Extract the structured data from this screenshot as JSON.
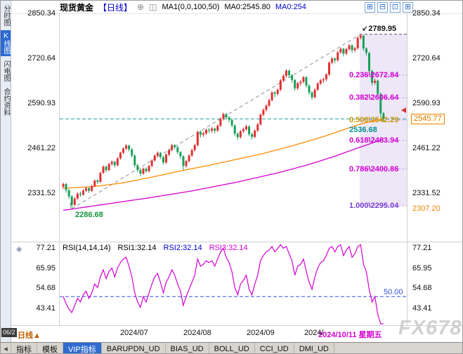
{
  "header": {
    "symbol": "现货黄金",
    "period": "【日线】",
    "collapse_icon": "⊕",
    "ma_icon": "◫",
    "ma_settings": "MA1(0,0,100,50)",
    "ma_value_1": "MA0:2545.80",
    "ma_value_2": "MA0:254",
    "window_icons": [
      "⊞",
      "⊟",
      "⊡",
      "⊞"
    ]
  },
  "sidebar": {
    "items": [
      {
        "label": "分时图",
        "active": false
      },
      {
        "label": "K线图",
        "active": true
      },
      {
        "label": "闪电图",
        "active": false
      },
      {
        "label": "合约资料",
        "active": false
      }
    ]
  },
  "chart_data": [
    {
      "type": "candlestick",
      "title": "现货黄金 日线",
      "y_ticks": [
        "2850.34",
        "2720.64",
        "2590.93",
        "2461.22",
        "2331.52"
      ],
      "x_labels": [
        "2024/07",
        "2024/08",
        "2024/09",
        "2024/"
      ],
      "crosshair_date": "2024/10/11 星期五",
      "current_price": "2545.77",
      "lower_level": "2307.20",
      "high_annotation": "2789.95",
      "high_arrow": "↙",
      "low_annotation": "2286.68",
      "low_arrow": "↑",
      "recent_low_annotation": "2536.68",
      "up_color": "#e03131",
      "down_color": "#18a058",
      "current_line_color": "#1f9e9e",
      "fib_levels": [
        {
          "label": "0.236\\2672.84",
          "price": 2672.84,
          "color": "#d400d4"
        },
        {
          "label": "0.382\\2606.64",
          "price": 2606.64,
          "color": "#d400d4"
        },
        {
          "label": "0.500\\2542.29",
          "price": 2542.29,
          "color": "#c89600"
        },
        {
          "label": "0.618\\2483.94",
          "price": 2483.94,
          "color": "#d400d4"
        },
        {
          "label": "0.786\\2400.86",
          "price": 2400.86,
          "color": "#d400d4"
        },
        {
          "label": "1.000\\2295.04",
          "price": 2295.04,
          "color": "#7a3fd4"
        }
      ],
      "trendline": {
        "from_index": 3,
        "to_index": 104
      },
      "ma_orange_points": [
        [
          0,
          2346
        ],
        [
          10,
          2350
        ],
        [
          20,
          2360
        ],
        [
          30,
          2376
        ],
        [
          40,
          2394
        ],
        [
          50,
          2410
        ],
        [
          60,
          2428
        ],
        [
          70,
          2446
        ],
        [
          80,
          2468
        ],
        [
          90,
          2492
        ],
        [
          95,
          2506
        ],
        [
          100,
          2520
        ],
        [
          104,
          2531
        ],
        [
          108,
          2539
        ],
        [
          112,
          2546
        ]
      ],
      "ma_magenta_points": [
        [
          0,
          2282
        ],
        [
          15,
          2300
        ],
        [
          30,
          2318
        ],
        [
          45,
          2338
        ],
        [
          60,
          2362
        ],
        [
          75,
          2390
        ],
        [
          85,
          2412
        ],
        [
          95,
          2438
        ],
        [
          103,
          2462
        ],
        [
          108,
          2476
        ],
        [
          112,
          2488
        ]
      ],
      "candles": [
        [
          2350,
          2362,
          2344,
          2358
        ],
        [
          2358,
          2361,
          2333,
          2340
        ],
        [
          2340,
          2344,
          2315,
          2322
        ],
        [
          2322,
          2326,
          2286.68,
          2298
        ],
        [
          2298,
          2320,
          2294,
          2316
        ],
        [
          2316,
          2334,
          2312,
          2330
        ],
        [
          2330,
          2336,
          2321,
          2327
        ],
        [
          2327,
          2343,
          2324,
          2339
        ],
        [
          2339,
          2350,
          2334,
          2346
        ],
        [
          2346,
          2349,
          2332,
          2338
        ],
        [
          2338,
          2356,
          2335,
          2352
        ],
        [
          2352,
          2371,
          2349,
          2368
        ],
        [
          2368,
          2372,
          2358,
          2364
        ],
        [
          2364,
          2393,
          2361,
          2390
        ],
        [
          2390,
          2412,
          2387,
          2408
        ],
        [
          2408,
          2411,
          2392,
          2398
        ],
        [
          2398,
          2419,
          2395,
          2416
        ],
        [
          2416,
          2426,
          2410,
          2422
        ],
        [
          2422,
          2425,
          2406,
          2412
        ],
        [
          2412,
          2435,
          2409,
          2432
        ],
        [
          2432,
          2451,
          2428,
          2448
        ],
        [
          2448,
          2464,
          2444,
          2460
        ],
        [
          2460,
          2473,
          2455,
          2469
        ],
        [
          2469,
          2471,
          2452,
          2458
        ],
        [
          2458,
          2462,
          2435,
          2440
        ],
        [
          2440,
          2444,
          2406,
          2412
        ],
        [
          2412,
          2416,
          2392,
          2398
        ],
        [
          2398,
          2404,
          2381,
          2388
        ],
        [
          2388,
          2406,
          2384,
          2402
        ],
        [
          2402,
          2407,
          2390,
          2395
        ],
        [
          2395,
          2413,
          2391,
          2410
        ],
        [
          2410,
          2429,
          2406,
          2426
        ],
        [
          2426,
          2444,
          2422,
          2440
        ],
        [
          2440,
          2452,
          2434,
          2448
        ],
        [
          2448,
          2450,
          2430,
          2436
        ],
        [
          2436,
          2439,
          2414,
          2420
        ],
        [
          2420,
          2446,
          2416,
          2443
        ],
        [
          2443,
          2459,
          2438,
          2456
        ],
        [
          2456,
          2474,
          2452,
          2470
        ],
        [
          2470,
          2473,
          2458,
          2464
        ],
        [
          2464,
          2468,
          2444,
          2450
        ],
        [
          2450,
          2453,
          2431,
          2438
        ],
        [
          2438,
          2441,
          2398,
          2410
        ],
        [
          2410,
          2428,
          2405,
          2424
        ],
        [
          2424,
          2444,
          2420,
          2440
        ],
        [
          2440,
          2460,
          2436,
          2456
        ],
        [
          2456,
          2474,
          2451,
          2470
        ],
        [
          2470,
          2512,
          2466,
          2508
        ],
        [
          2508,
          2513,
          2492,
          2500
        ],
        [
          2500,
          2509,
          2494,
          2504
        ],
        [
          2504,
          2518,
          2499,
          2514
        ],
        [
          2514,
          2520,
          2505,
          2512
        ],
        [
          2512,
          2523,
          2506,
          2518
        ],
        [
          2518,
          2521,
          2504,
          2512
        ],
        [
          2512,
          2530,
          2508,
          2526
        ],
        [
          2526,
          2550,
          2522,
          2546
        ],
        [
          2546,
          2564,
          2541,
          2560
        ],
        [
          2560,
          2563,
          2544,
          2550
        ],
        [
          2550,
          2554,
          2536,
          2543
        ],
        [
          2543,
          2546,
          2521,
          2527
        ],
        [
          2527,
          2530,
          2496,
          2503
        ],
        [
          2503,
          2507,
          2485,
          2493
        ],
        [
          2493,
          2514,
          2489,
          2510
        ],
        [
          2510,
          2521,
          2505,
          2516
        ],
        [
          2516,
          2529,
          2511,
          2524
        ],
        [
          2524,
          2527,
          2496,
          2502
        ],
        [
          2502,
          2506,
          2486,
          2494
        ],
        [
          2494,
          2516,
          2490,
          2512
        ],
        [
          2512,
          2534,
          2508,
          2530
        ],
        [
          2530,
          2562,
          2526,
          2558
        ],
        [
          2558,
          2576,
          2553,
          2572
        ],
        [
          2572,
          2588,
          2567,
          2584
        ],
        [
          2584,
          2604,
          2580,
          2600
        ],
        [
          2600,
          2626,
          2596,
          2622
        ],
        [
          2622,
          2626,
          2609,
          2618
        ],
        [
          2618,
          2634,
          2613,
          2630
        ],
        [
          2630,
          2661,
          2626,
          2657
        ],
        [
          2657,
          2674,
          2652,
          2670
        ],
        [
          2670,
          2689,
          2664,
          2685
        ],
        [
          2685,
          2688,
          2665,
          2672
        ],
        [
          2672,
          2676,
          2650,
          2658
        ],
        [
          2658,
          2661,
          2627,
          2634
        ],
        [
          2634,
          2653,
          2629,
          2649
        ],
        [
          2649,
          2658,
          2641,
          2653
        ],
        [
          2653,
          2670,
          2648,
          2666
        ],
        [
          2666,
          2669,
          2636,
          2642
        ],
        [
          2642,
          2646,
          2615,
          2622
        ],
        [
          2622,
          2626,
          2601,
          2608
        ],
        [
          2608,
          2634,
          2604,
          2630
        ],
        [
          2630,
          2652,
          2626,
          2648
        ],
        [
          2648,
          2661,
          2643,
          2657
        ],
        [
          2657,
          2665,
          2650,
          2660
        ],
        [
          2660,
          2678,
          2655,
          2674
        ],
        [
          2674,
          2712,
          2670,
          2708
        ],
        [
          2708,
          2724,
          2703,
          2720
        ],
        [
          2720,
          2723,
          2706,
          2715
        ],
        [
          2715,
          2742,
          2711,
          2738
        ],
        [
          2738,
          2752,
          2733,
          2748
        ],
        [
          2748,
          2751,
          2726,
          2734
        ],
        [
          2734,
          2751,
          2730,
          2747
        ],
        [
          2747,
          2762,
          2742,
          2758
        ],
        [
          2758,
          2761,
          2736,
          2744
        ],
        [
          2744,
          2754,
          2738,
          2750
        ],
        [
          2750,
          2784,
          2746,
          2780
        ],
        [
          2780,
          2789.95,
          2775,
          2786
        ],
        [
          2786,
          2788,
          2742,
          2749
        ],
        [
          2749,
          2753,
          2728,
          2736
        ],
        [
          2736,
          2739,
          2676,
          2684
        ],
        [
          2684,
          2688,
          2642,
          2650
        ],
        [
          2650,
          2662,
          2644,
          2656
        ],
        [
          2656,
          2659,
          2610,
          2618
        ],
        [
          2618,
          2622,
          2550,
          2562
        ],
        [
          2562,
          2566,
          2536.68,
          2545.77
        ]
      ]
    },
    {
      "type": "line",
      "name": "RSI",
      "legend": "RSI(14,14,14)",
      "series_labels": [
        {
          "text": "RSI1:32.14",
          "color": "#000000"
        },
        {
          "text": "RSI2:32.14",
          "color": "#0000cc"
        },
        {
          "text": "RSI3:32.14",
          "color": "#d400d4"
        }
      ],
      "y_ticks": [
        "77.21",
        "65.95",
        "54.68",
        "43.41"
      ],
      "mid_line": {
        "value": 50,
        "label": "50.00",
        "color": "#3355dd"
      },
      "line_color": "#d400d4",
      "panel_icon": "◈",
      "values": [
        50,
        46,
        43,
        41,
        45,
        49,
        47,
        51,
        53,
        49,
        52,
        57,
        55,
        61,
        65,
        60,
        64,
        66,
        61,
        66,
        69,
        71,
        72,
        67,
        61,
        52,
        47,
        44,
        50,
        47,
        52,
        57,
        61,
        63,
        58,
        52,
        58,
        61,
        65,
        62,
        57,
        53,
        45,
        50,
        54,
        58,
        62,
        71,
        67,
        68,
        70,
        69,
        70,
        67,
        71,
        75,
        77,
        72,
        69,
        64,
        55,
        51,
        57,
        59,
        62,
        54,
        51,
        57,
        62,
        70,
        73,
        75,
        76,
        78,
        75,
        77,
        79,
        77,
        78,
        74,
        70,
        62,
        67,
        68,
        71,
        64,
        58,
        54,
        61,
        66,
        69,
        70,
        73,
        77,
        78,
        75,
        78,
        79,
        73,
        76,
        78,
        72,
        74,
        78,
        79,
        68,
        64,
        54,
        47,
        50,
        40,
        31,
        32.14
      ]
    }
  ],
  "bottom": {
    "left_date_badge": "06/2",
    "period_selector": "日线",
    "period_arrow": "▲",
    "nav_icon": "◂",
    "tabs": [
      {
        "label": "指标",
        "active": false
      },
      {
        "label": "模板",
        "active": false
      },
      {
        "label": "VIP指标",
        "active": true
      },
      {
        "label": "BARUPDN_UD",
        "active": false
      },
      {
        "label": "BIAS_UD",
        "active": false
      },
      {
        "label": "BOLL_UD",
        "active": false
      },
      {
        "label": "CCI_UD",
        "active": false
      },
      {
        "label": "DMI_UD",
        "active": false
      }
    ]
  },
  "watermark": "FX678"
}
